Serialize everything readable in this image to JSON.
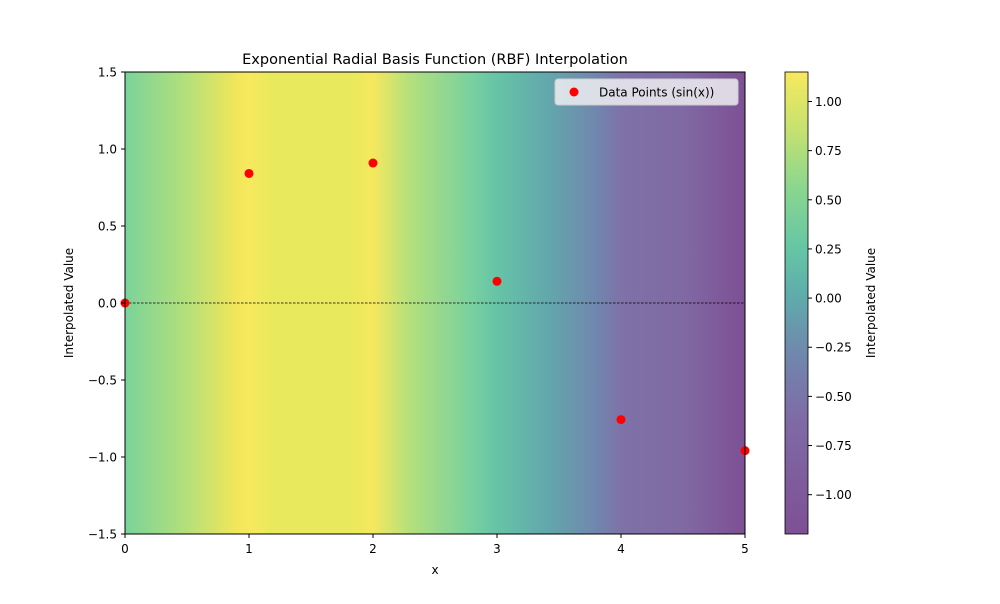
{
  "chart_data": {
    "type": "scatter",
    "title": "Exponential Radial Basis Function (RBF) Interpolation",
    "xlabel": "x",
    "ylabel": "Interpolated Value",
    "xlim": [
      0,
      5
    ],
    "ylim": [
      -1.5,
      1.5
    ],
    "xticks": [
      "0",
      "1",
      "2",
      "3",
      "4",
      "5"
    ],
    "yticks": [
      "−1.5",
      "−1.0",
      "−0.5",
      "0.0",
      "0.5",
      "1.0",
      "1.5"
    ],
    "series": [
      {
        "name": "Data Points (sin(x))",
        "color": "#ff0000",
        "x": [
          0,
          1,
          2,
          3,
          4,
          5
        ],
        "y": [
          0,
          0.841,
          0.909,
          0.141,
          -0.757,
          -0.959
        ]
      }
    ],
    "background": "interpolated field, viridis colormap (alpha 0.7)",
    "reference_line": {
      "y": 0,
      "style": "dashed",
      "color": "#000000"
    },
    "legend": "top-right",
    "colorbar": {
      "label": "Interpolated Value",
      "range": [
        -1.2,
        1.15
      ],
      "ticks": [
        "−1.00",
        "−0.75",
        "−0.50",
        "−0.25",
        "0.00",
        "0.25",
        "0.50",
        "0.75",
        "1.00"
      ],
      "tick_values": [
        -1,
        -0.75,
        -0.5,
        -0.25,
        0,
        0.25,
        0.5,
        0.75,
        1
      ]
    }
  }
}
